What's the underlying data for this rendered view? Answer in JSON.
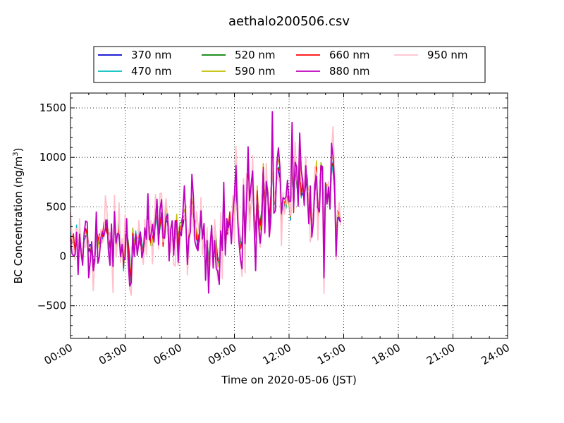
{
  "chart_data": {
    "type": "line",
    "title": "aethalo200506.csv",
    "xlabel": "Time on 2020-05-06 (JST)",
    "ylabel_main": "BC Concentration (ng/m",
    "ylabel_sup": "3",
    "ylabel_end": ")",
    "xlim": [
      "00:00",
      "24:00"
    ],
    "ylim": [
      -830,
      1650
    ],
    "x_ticks": [
      "00:00",
      "03:00",
      "06:00",
      "09:00",
      "12:00",
      "15:00",
      "18:00",
      "21:00",
      "24:00"
    ],
    "y_ticks": [
      -500,
      0,
      500,
      1000,
      1500
    ],
    "grid": true,
    "legend_position": "top",
    "data_start": "00:00",
    "data_end": "14:50",
    "sample_interval_minutes": 5,
    "series": [
      {
        "name": "370 nm",
        "color": "#0000cc",
        "level": [
          40,
          140,
          180,
          90,
          160,
          230,
          250,
          230,
          180,
          290,
          560,
          650,
          560,
          520,
          570,
          500
        ]
      },
      {
        "name": "470 nm",
        "color": "#00bfbf",
        "level": [
          45,
          140,
          180,
          90,
          165,
          230,
          255,
          235,
          185,
          295,
          570,
          660,
          570,
          525,
          575,
          505
        ]
      },
      {
        "name": "520 nm",
        "color": "#007f00",
        "level": [
          40,
          135,
          175,
          85,
          160,
          225,
          250,
          230,
          180,
          290,
          565,
          655,
          565,
          520,
          570,
          500
        ]
      },
      {
        "name": "590 nm",
        "color": "#bfbf00",
        "level": [
          50,
          145,
          185,
          95,
          170,
          240,
          270,
          250,
          190,
          300,
          580,
          680,
          590,
          540,
          590,
          520
        ]
      },
      {
        "name": "660 nm",
        "color": "#ff0000",
        "level": [
          45,
          145,
          185,
          90,
          165,
          235,
          260,
          240,
          185,
          300,
          575,
          670,
          580,
          530,
          580,
          510
        ]
      },
      {
        "name": "880 nm",
        "color": "#bf00bf",
        "level": [
          40,
          130,
          170,
          80,
          150,
          220,
          240,
          220,
          170,
          280,
          550,
          640,
          560,
          510,
          560,
          490
        ]
      },
      {
        "name": "950 nm",
        "color": "#ffc0cb",
        "level": [
          45,
          140,
          175,
          85,
          155,
          225,
          245,
          225,
          175,
          285,
          560,
          650,
          565,
          515,
          565,
          495
        ]
      }
    ]
  }
}
